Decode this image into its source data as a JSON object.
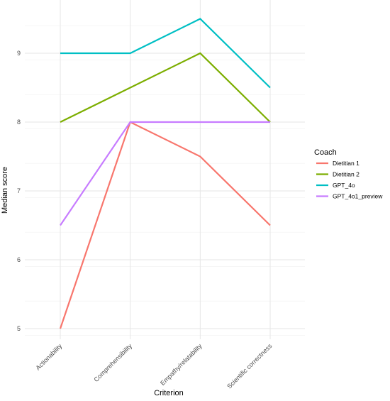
{
  "chart_data": {
    "type": "line",
    "xlabel": "Criterion",
    "ylabel": "Median score",
    "categories": [
      "Actionability",
      "Comprehensibility",
      "Empathy/relatability",
      "Scientific correctness"
    ],
    "ylim": [
      4.9,
      9.55
    ],
    "yticks": [
      5,
      6,
      7,
      8,
      9
    ],
    "grid": true,
    "legend": {
      "title": "Coach",
      "placement": "right"
    },
    "series": [
      {
        "name": "Dietitian 1",
        "color": "#F8766D",
        "values": [
          5,
          8,
          7.5,
          6.5
        ]
      },
      {
        "name": "Dietitian 2",
        "color": "#7CAE00",
        "values": [
          8,
          8.5,
          9,
          8
        ]
      },
      {
        "name": "GPT_4o",
        "color": "#00BFC4",
        "values": [
          9,
          9,
          9.5,
          8.5
        ]
      },
      {
        "name": "GPT_4o1_preview",
        "color": "#C77CFF",
        "values": [
          6.5,
          8,
          8,
          8
        ]
      }
    ]
  }
}
